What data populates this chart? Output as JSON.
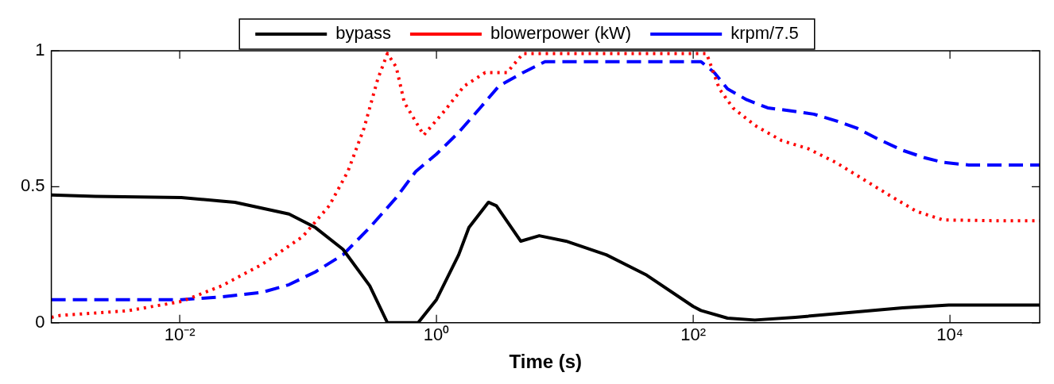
{
  "chart_data": {
    "type": "line",
    "xlabel": "Time (s)",
    "xlim": [
      0.001,
      50000
    ],
    "xticks": [
      {
        "value": 0.01,
        "label": "10⁻²"
      },
      {
        "value": 1,
        "label": "10⁰"
      },
      {
        "value": 100,
        "label": "10²"
      },
      {
        "value": 10000,
        "label": "10⁴"
      }
    ],
    "ylim": [
      0,
      1
    ],
    "yticks": [
      0,
      0.5,
      1
    ],
    "log": "x",
    "grid": false,
    "legend": "top",
    "marker": "none",
    "series": [
      {
        "name": "bypass",
        "color": "#000000",
        "line_style": "solid",
        "x": [
          0.001,
          0.0022,
          0.0103,
          0.0269,
          0.071,
          0.114,
          0.187,
          0.302,
          0.415,
          0.72,
          1.0,
          1.49,
          1.79,
          2.54,
          2.93,
          4.53,
          6.32,
          10.2,
          21,
          43.4,
          100,
          115,
          185,
          302,
          624,
          1622,
          4276,
          9772,
          50000
        ],
        "values": [
          0.47,
          0.465,
          0.46,
          0.443,
          0.4,
          0.35,
          0.27,
          0.136,
          0,
          0,
          0.085,
          0.25,
          0.35,
          0.443,
          0.43,
          0.3,
          0.32,
          0.3,
          0.25,
          0.175,
          0.06,
          0.045,
          0.017,
          0.01,
          0.02,
          0.037,
          0.055,
          0.065,
          0.065
        ]
      },
      {
        "name": "blowerpower (kW)",
        "color": "#ff0000",
        "line_style": "dotted",
        "x": [
          0.001,
          0.00118,
          0.0039,
          0.0103,
          0.0213,
          0.044,
          0.0908,
          0.146,
          0.204,
          0.273,
          0.349,
          0.415,
          0.486,
          0.562,
          0.796,
          1.16,
          1.64,
          2.4,
          3.54,
          4.27,
          4.73,
          127,
          160,
          204,
          302,
          487,
          785,
          1285,
          2070,
          3340,
          5470,
          8820,
          23300,
          50000
        ],
        "values": [
          0.02,
          0.027,
          0.044,
          0.078,
          0.136,
          0.215,
          0.317,
          0.43,
          0.556,
          0.716,
          0.896,
          0.99,
          0.94,
          0.81,
          0.69,
          0.78,
          0.87,
          0.92,
          0.92,
          0.965,
          0.99,
          0.99,
          0.86,
          0.79,
          0.726,
          0.67,
          0.64,
          0.59,
          0.53,
          0.47,
          0.41,
          0.378,
          0.375,
          0.375
        ]
      },
      {
        "name": "krpm/7.5",
        "color": "#0000ff",
        "line_style": "dashed",
        "x": [
          0.001,
          0.0103,
          0.0213,
          0.044,
          0.071,
          0.114,
          0.187,
          0.302,
          0.486,
          0.689,
          1.0,
          1.49,
          2.19,
          3.06,
          4.73,
          7.01,
          115,
          146,
          185,
          261,
          380,
          624,
          869,
          1285,
          1875,
          2770,
          4276,
          6320,
          8820,
          14000,
          50000
        ],
        "values": [
          0.085,
          0.085,
          0.095,
          0.112,
          0.14,
          0.187,
          0.25,
          0.35,
          0.46,
          0.556,
          0.62,
          0.7,
          0.79,
          0.87,
          0.92,
          0.96,
          0.96,
          0.92,
          0.86,
          0.82,
          0.79,
          0.777,
          0.767,
          0.743,
          0.716,
          0.675,
          0.634,
          0.607,
          0.59,
          0.58,
          0.58
        ]
      }
    ]
  }
}
